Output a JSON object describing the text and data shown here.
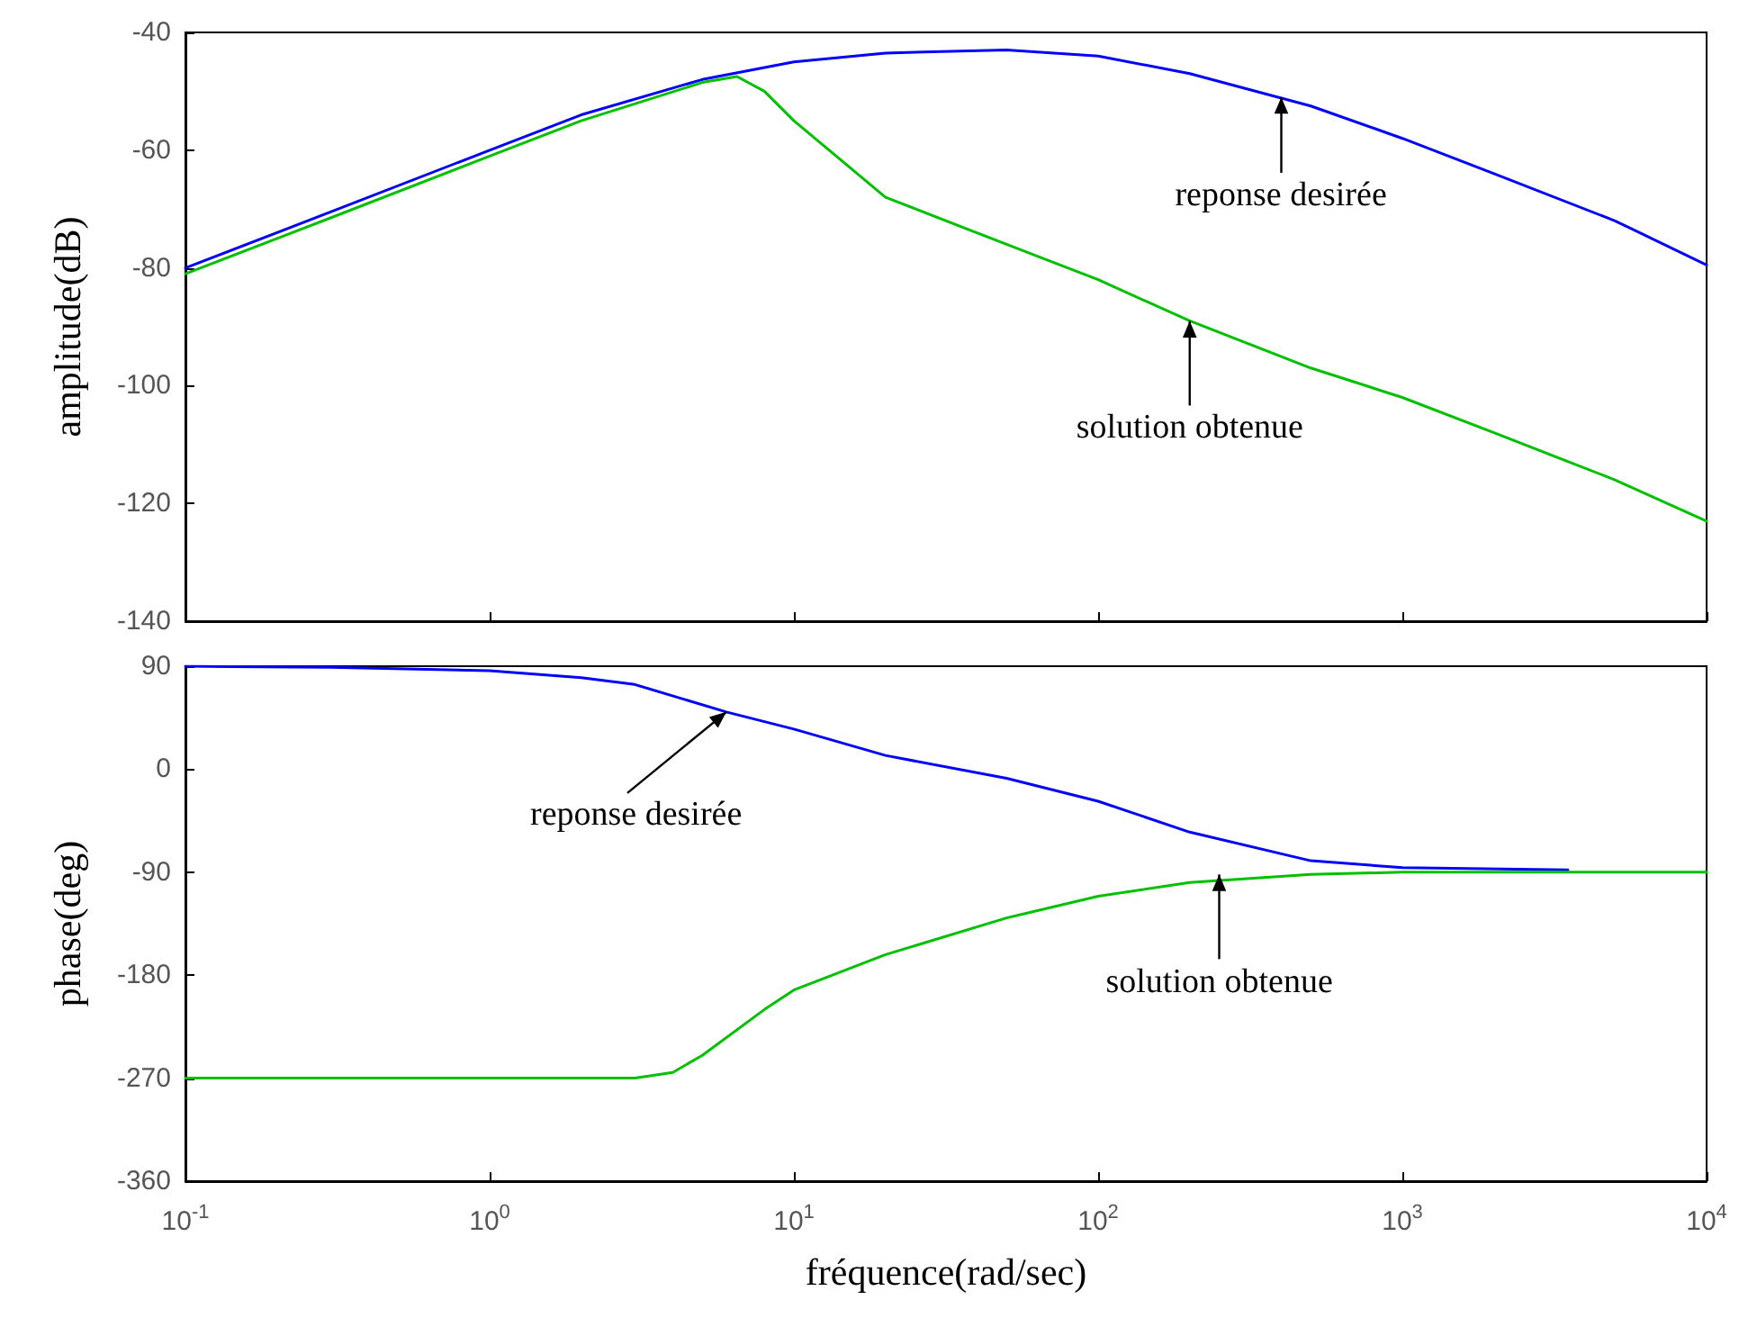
{
  "chart_data": [
    {
      "type": "line",
      "ylabel": "amplitude(dB)",
      "log": "x",
      "xlim": [
        0.1,
        10000
      ],
      "xticks": [
        {
          "value": 0.1,
          "label": null
        },
        {
          "value": 1,
          "label": null
        },
        {
          "value": 10,
          "label": null
        },
        {
          "value": 100,
          "label": null
        },
        {
          "value": 1000,
          "label": null
        },
        {
          "value": 10000,
          "label": null
        }
      ],
      "ylim": [
        -140,
        -40
      ],
      "yticks": [
        -140,
        -120,
        -100,
        -80,
        -60,
        -40
      ],
      "tick_labels": "y",
      "grid": false,
      "marker": "none",
      "series": [
        {
          "color": "#0000ff",
          "x": [
            0.1,
            0.3,
            1,
            2,
            5,
            10,
            20,
            50,
            100,
            200,
            500,
            1000,
            2000,
            5000,
            10000
          ],
          "values": [
            -80,
            -70.5,
            -60,
            -54,
            -48,
            -45,
            -43.5,
            -43,
            -44,
            -47,
            -52.5,
            -58,
            -64,
            -72,
            -79.5
          ]
        },
        {
          "color": "#00c000",
          "x": [
            0.1,
            0.3,
            1,
            2,
            5,
            6.5,
            8,
            10,
            20,
            50,
            100,
            200,
            500,
            1000,
            2000,
            5000,
            10000
          ],
          "values": [
            -81,
            -71.5,
            -61,
            -55,
            -48.5,
            -47.5,
            -50,
            -55,
            -68,
            -76,
            -82,
            -89,
            -97,
            -102,
            -108,
            -116,
            -123
          ]
        }
      ],
      "annotations": [
        {
          "text": "reponse desirée",
          "x": 400,
          "y": -51
        },
        {
          "text": "solution obtenue",
          "x": 200,
          "y": -89
        }
      ]
    },
    {
      "type": "line",
      "xlabel": "fréquence(rad/sec)",
      "ylabel": "phase(deg)",
      "log": "x",
      "xlim": [
        0.1,
        10000
      ],
      "xticks": [
        {
          "value": 0.1,
          "label": "10$^{-1}$"
        },
        {
          "value": 1,
          "label": "10$^{0}$"
        },
        {
          "value": 10,
          "label": "10$^{1}$"
        },
        {
          "value": 100,
          "label": "10$^{2}$"
        },
        {
          "value": 1000,
          "label": "10$^{3}$"
        },
        {
          "value": 10000,
          "label": "10$^{4}$"
        }
      ],
      "ylim": [
        -360,
        90
      ],
      "yticks": [
        -360,
        -270,
        -180,
        -90,
        0,
        90
      ],
      "grid": false,
      "marker": "none",
      "series": [
        {
          "color": "#0000ff",
          "x": [
            0.1,
            0.3,
            1,
            2,
            3,
            6,
            10,
            20,
            50,
            100,
            200,
            500,
            1000,
            3500
          ],
          "values": [
            90,
            89,
            86,
            80,
            74,
            50,
            35,
            12,
            -8,
            -28,
            -55,
            -80,
            -86,
            -88
          ]
        },
        {
          "color": "#00c000",
          "x": [
            0.1,
            1,
            3,
            4,
            5,
            8,
            10,
            20,
            50,
            100,
            200,
            500,
            1000,
            10000
          ],
          "values": [
            -270,
            -270,
            -270,
            -265,
            -250,
            -210,
            -193,
            -162,
            -130,
            -111,
            -99,
            -92,
            -90,
            -90
          ]
        }
      ],
      "annotations": [
        {
          "text": "reponse desirée",
          "x": 6,
          "y": 50
        },
        {
          "text": "solution obtenue",
          "x": 250,
          "y": -92
        }
      ]
    }
  ]
}
